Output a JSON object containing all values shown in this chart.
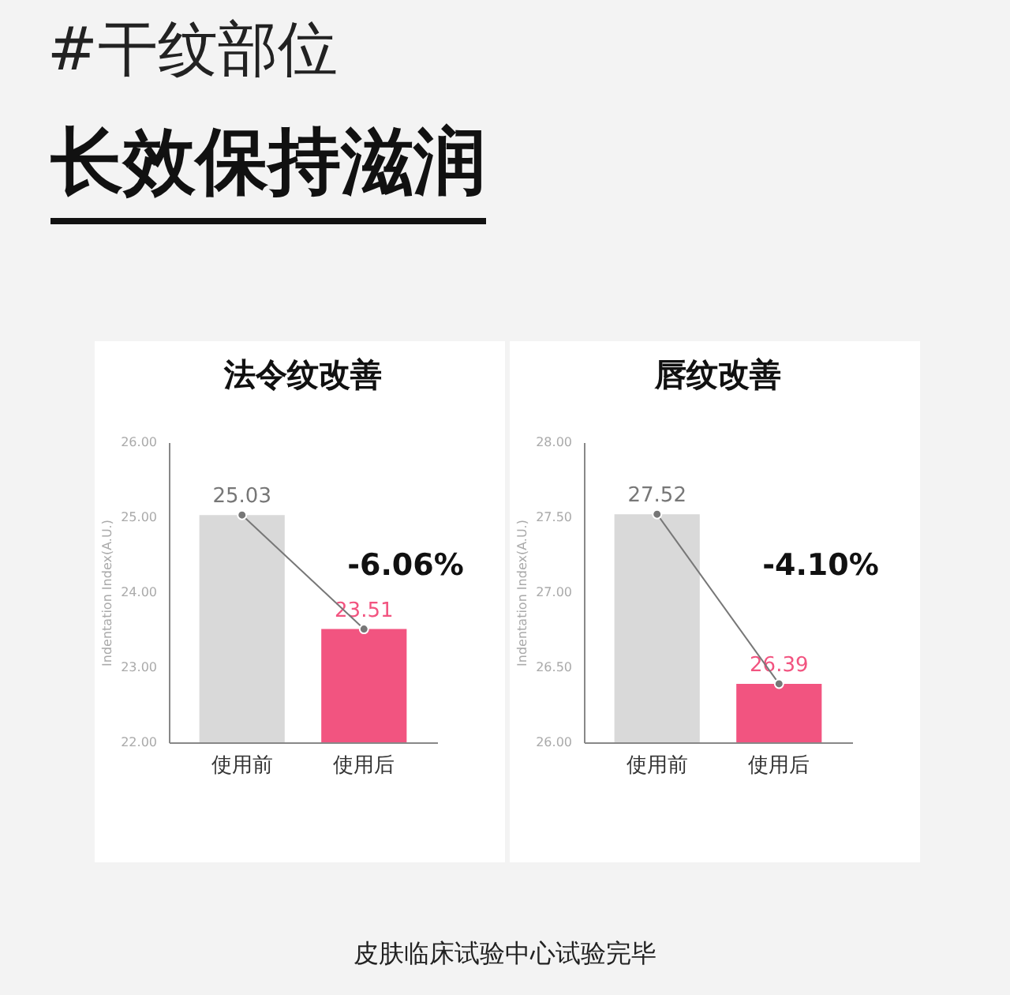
{
  "chart_data": [
    {
      "type": "bar",
      "title": "法令纹改善",
      "ylabel": "Indentation Index(A.U.)",
      "categories": [
        "使用前",
        "使用后"
      ],
      "series": [
        {
          "values": [
            25.03,
            23.51
          ],
          "colors": [
            "#d9d9d9",
            "#f25480"
          ],
          "value_labels": [
            "25.03",
            "23.51"
          ]
        },
        {
          "type": "line",
          "values": [
            25.03,
            23.51
          ],
          "color": "#777777",
          "marker": "circle"
        }
      ],
      "ylim": [
        22,
        26
      ],
      "yticks": [
        {
          "value": 22,
          "label": "22.00"
        },
        {
          "value": 23,
          "label": "23.00"
        },
        {
          "value": 24,
          "label": "24.00"
        },
        {
          "value": 25,
          "label": "25.00"
        },
        {
          "value": 26,
          "label": "26.00"
        }
      ],
      "grid": false,
      "annotations": [
        "-6.06%",
        "#干纹部位",
        "长效保持滋润"
      ]
    },
    {
      "type": "bar",
      "title": "唇纹改善",
      "ylabel": "Indentation Index(A.U.)",
      "categories": [
        "使用前",
        "使用后"
      ],
      "series": [
        {
          "values": [
            27.52,
            26.39
          ],
          "colors": [
            "#d9d9d9",
            "#f25480"
          ],
          "value_labels": [
            "27.52",
            "26.39"
          ]
        },
        {
          "type": "line",
          "values": [
            27.52,
            26.39
          ],
          "color": "#777777",
          "marker": "circle"
        }
      ],
      "ylim": [
        26,
        28
      ],
      "yticks": [
        {
          "value": 26,
          "label": "26.00"
        },
        {
          "value": 26.5,
          "label": "26.50"
        },
        {
          "value": 27,
          "label": "27.00"
        },
        {
          "value": 27.5,
          "label": "27.50"
        },
        {
          "value": 28,
          "label": "28.00"
        }
      ],
      "grid": false,
      "annotations": [
        "-4.10%",
        "皮肤临床试验中心试验完毕"
      ]
    }
  ]
}
